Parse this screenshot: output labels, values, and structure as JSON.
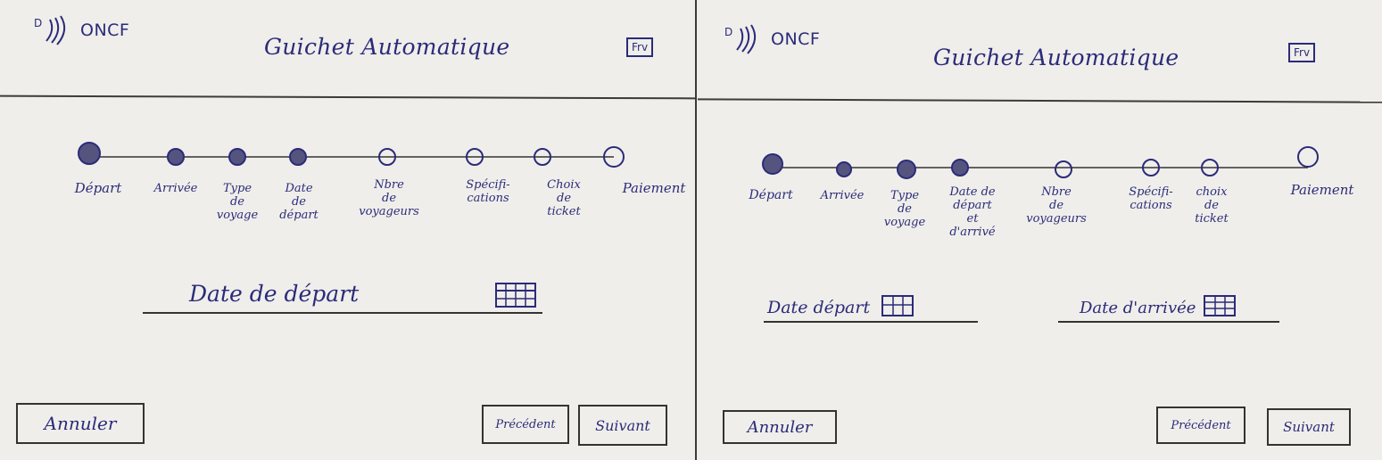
{
  "colors": {
    "ink": "#2b2b7a",
    "pencil": "#333333",
    "paper": "#efeeea"
  },
  "left": {
    "logo_icon": "signal-waves-icon",
    "logo_letter": "D",
    "logo_text": "ONCF",
    "title": "Guichet Automatique",
    "lang": "Frv",
    "steps": [
      {
        "label": "Départ",
        "state": "done"
      },
      {
        "label": "Arrivée",
        "state": "done"
      },
      {
        "label": "Type\nde\nvoyage",
        "state": "done"
      },
      {
        "label": "Date\nde\ndépart",
        "state": "current"
      },
      {
        "label": "Nbre\nde\nvoyageurs",
        "state": "todo"
      },
      {
        "label": "Spécifi-\ncations",
        "state": "todo"
      },
      {
        "label": "Choix\nde\nticket",
        "state": "todo"
      },
      {
        "label": "Paiement",
        "state": "todo"
      }
    ],
    "date_field": {
      "label": "Date de départ",
      "icon": "calendar-icon"
    },
    "cancel_label": "Annuler",
    "prev_label": "Précédent",
    "next_label": "Suivant"
  },
  "right": {
    "logo_icon": "signal-waves-icon",
    "logo_letter": "D",
    "logo_text": "ONCF",
    "title": "Guichet Automatique",
    "lang": "Frv",
    "steps": [
      {
        "label": "Départ",
        "state": "done"
      },
      {
        "label": "Arrivée",
        "state": "done"
      },
      {
        "label": "Type\nde\nvoyage",
        "state": "done"
      },
      {
        "label": "Date de\ndépart\net\nd'arrivé",
        "state": "current"
      },
      {
        "label": "Nbre\nde\nvoyageurs",
        "state": "todo"
      },
      {
        "label": "Spécifi-\ncations",
        "state": "todo"
      },
      {
        "label": "choix\nde\nticket",
        "state": "todo"
      },
      {
        "label": "Paiement",
        "state": "todo"
      }
    ],
    "departure_field": {
      "label": "Date départ",
      "icon": "calendar-icon"
    },
    "arrival_field": {
      "label": "Date d'arrivée",
      "icon": "calendar-icon"
    },
    "cancel_label": "Annuler",
    "prev_label": "Précédent",
    "next_label": "Suivant"
  }
}
